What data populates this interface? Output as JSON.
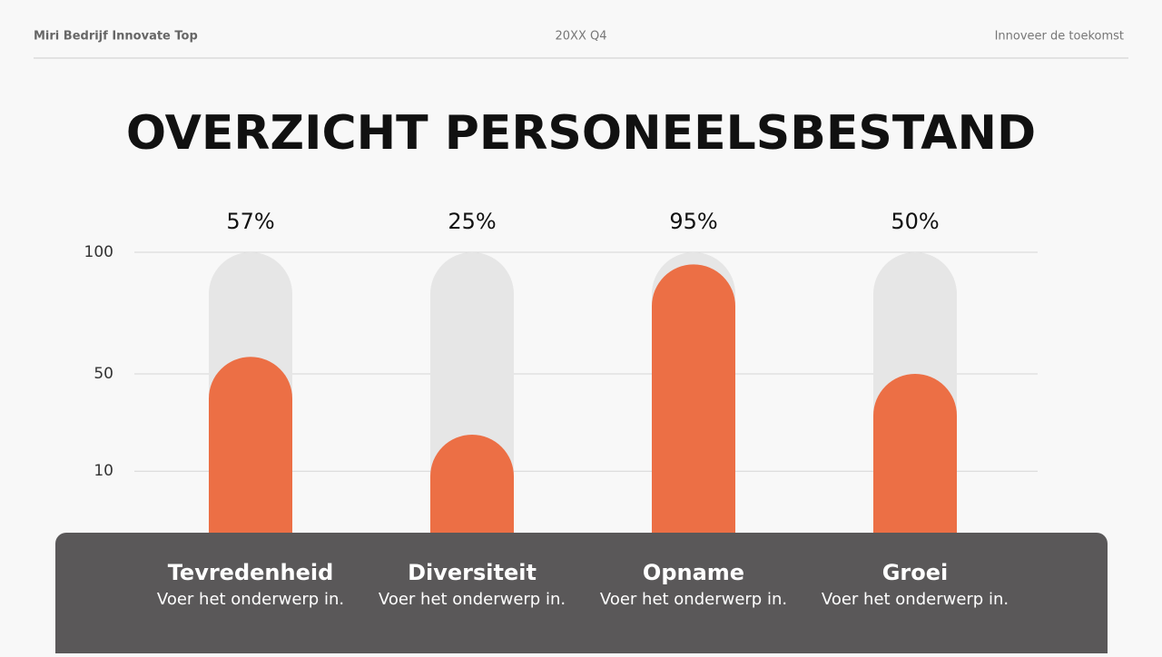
{
  "header": {
    "left": "Miri Bedrijf Innovate Top",
    "center": "20XX Q4",
    "right": "Innoveer de toekomst"
  },
  "chart_data": {
    "type": "bar",
    "title": "OVERZICHT PERSONEELSBESTAND",
    "categories": [
      "Tevredenheid",
      "Diversiteit",
      "Opname",
      "Groei"
    ],
    "category_notes": [
      "Voer het onderwerp in.",
      "Voer het onderwerp in.",
      "Voer het onderwerp in.",
      "Voer het onderwerp in."
    ],
    "values": [
      57,
      25,
      95,
      50
    ],
    "value_labels": [
      "57%",
      "25%",
      "95%",
      "50%"
    ],
    "color": "#ec6f45",
    "track_color": "#e6e6e6",
    "ylim": [
      0,
      100
    ],
    "yticks": [
      10,
      50,
      100
    ],
    "grid": true
  }
}
